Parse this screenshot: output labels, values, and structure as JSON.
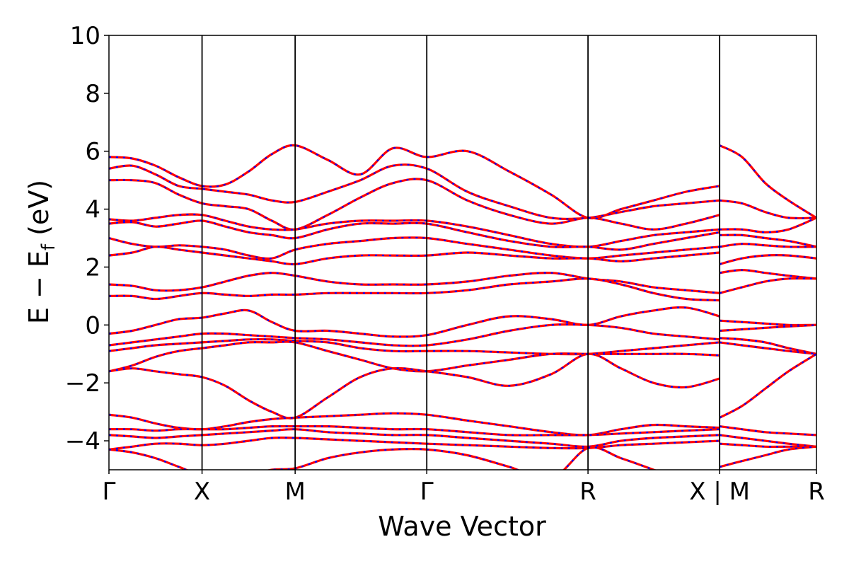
{
  "chart_data": {
    "type": "line",
    "title": "",
    "xlabel": "Wave Vector",
    "ylabel": "E − E_f (eV)",
    "ylabel_parts": {
      "main": "E − E",
      "sub": "f",
      "unit": " (eV)"
    },
    "ylim": [
      -5,
      10
    ],
    "yticks": [
      10,
      8,
      6,
      4,
      2,
      0,
      -2,
      -4
    ],
    "ytick_labels": [
      "10",
      "8",
      "6",
      "4",
      "2",
      "0",
      "−2",
      "−4"
    ],
    "xlim": [
      0,
      7.6
    ],
    "kpoints": [
      {
        "label": "Γ",
        "x": 0
      },
      {
        "label": "X",
        "x": 1
      },
      {
        "label": "M",
        "x": 2
      },
      {
        "label": "Γ",
        "x": 3.414
      },
      {
        "label": "R",
        "x": 5.146
      },
      {
        "label": "X | M",
        "x": 6.56
      },
      {
        "label": "R",
        "x": 7.6
      }
    ],
    "grid": false,
    "line_colors": {
      "primary": "#ff0000",
      "secondary": "#0000ff"
    },
    "series": [
      {
        "x": [
          0,
          0.25,
          0.5,
          0.75,
          1,
          1.25,
          1.5,
          1.75,
          2,
          2.35,
          2.7,
          3.05,
          3.414,
          3.85,
          4.3,
          4.75,
          5.146,
          5.5,
          5.85,
          6.2,
          6.56
        ],
        "values": [
          5.8,
          5.75,
          5.5,
          5.1,
          4.8,
          4.85,
          5.3,
          5.9,
          6.2,
          5.7,
          5.2,
          6.1,
          5.8,
          6.0,
          5.3,
          4.5,
          3.7,
          4.0,
          4.3,
          4.6,
          4.8
        ]
      },
      {
        "x": [
          0,
          0.25,
          0.5,
          0.75,
          1,
          1.25,
          1.5,
          1.75,
          2,
          2.35,
          2.7,
          3.05,
          3.414,
          3.85,
          4.3,
          4.75,
          5.146,
          5.5,
          5.85,
          6.2,
          6.56
        ],
        "values": [
          5.4,
          5.5,
          5.2,
          4.8,
          4.7,
          4.6,
          4.5,
          4.3,
          4.25,
          4.6,
          5.0,
          5.5,
          5.4,
          4.6,
          4.1,
          3.7,
          3.7,
          3.9,
          4.1,
          4.2,
          4.3
        ]
      },
      {
        "x": [
          0,
          0.25,
          0.5,
          0.75,
          1,
          1.25,
          1.5,
          1.75,
          2,
          2.35,
          2.7,
          3.05,
          3.414,
          3.85,
          4.3,
          4.75,
          5.146,
          5.5,
          5.85,
          6.2,
          6.56
        ],
        "values": [
          5.0,
          5.0,
          4.9,
          4.5,
          4.2,
          4.1,
          4.0,
          3.6,
          3.3,
          3.8,
          4.4,
          4.9,
          5.0,
          4.3,
          3.8,
          3.5,
          3.7,
          3.5,
          3.3,
          3.5,
          3.8
        ]
      },
      {
        "x": [
          0,
          0.25,
          0.5,
          0.75,
          1,
          1.25,
          1.5,
          1.75,
          2,
          2.35,
          2.7,
          3.05,
          3.414,
          3.85,
          4.3,
          4.75,
          5.146,
          5.5,
          5.85,
          6.2,
          6.56
        ],
        "values": [
          3.65,
          3.6,
          3.7,
          3.8,
          3.8,
          3.6,
          3.4,
          3.3,
          3.3,
          3.5,
          3.6,
          3.6,
          3.6,
          3.4,
          3.1,
          2.8,
          2.7,
          2.9,
          3.1,
          3.2,
          3.3
        ]
      },
      {
        "x": [
          0,
          0.25,
          0.5,
          0.75,
          1,
          1.25,
          1.5,
          1.75,
          2,
          2.35,
          2.7,
          3.05,
          3.414,
          3.85,
          4.3,
          4.75,
          5.146,
          5.5,
          5.85,
          6.2,
          6.56
        ],
        "values": [
          3.5,
          3.55,
          3.4,
          3.5,
          3.6,
          3.4,
          3.2,
          3.1,
          3.0,
          3.3,
          3.5,
          3.5,
          3.5,
          3.2,
          2.9,
          2.7,
          2.7,
          2.6,
          2.8,
          3.0,
          3.2
        ]
      },
      {
        "x": [
          0,
          0.25,
          0.5,
          0.75,
          1,
          1.25,
          1.5,
          1.75,
          2,
          2.35,
          2.7,
          3.05,
          3.414,
          3.85,
          4.3,
          4.75,
          5.146,
          5.5,
          5.85,
          6.2,
          6.56
        ],
        "values": [
          3.0,
          2.8,
          2.7,
          2.75,
          2.7,
          2.6,
          2.4,
          2.3,
          2.6,
          2.8,
          2.9,
          3.0,
          3.0,
          2.8,
          2.6,
          2.4,
          2.3,
          2.4,
          2.5,
          2.6,
          2.7
        ]
      },
      {
        "x": [
          0,
          0.25,
          0.5,
          0.75,
          1,
          1.25,
          1.5,
          1.75,
          2,
          2.35,
          2.7,
          3.05,
          3.414,
          3.85,
          4.3,
          4.75,
          5.146,
          5.5,
          5.85,
          6.2,
          6.56
        ],
        "values": [
          2.4,
          2.5,
          2.7,
          2.6,
          2.5,
          2.4,
          2.3,
          2.2,
          2.1,
          2.3,
          2.4,
          2.4,
          2.4,
          2.5,
          2.4,
          2.3,
          2.3,
          2.2,
          2.3,
          2.4,
          2.5
        ]
      },
      {
        "x": [
          0,
          0.25,
          0.5,
          0.75,
          1,
          1.25,
          1.5,
          1.75,
          2,
          2.35,
          2.7,
          3.05,
          3.414,
          3.85,
          4.3,
          4.75,
          5.146,
          5.5,
          5.85,
          6.2,
          6.56
        ],
        "values": [
          1.4,
          1.35,
          1.2,
          1.2,
          1.3,
          1.5,
          1.7,
          1.8,
          1.7,
          1.5,
          1.4,
          1.4,
          1.4,
          1.5,
          1.7,
          1.8,
          1.6,
          1.5,
          1.3,
          1.2,
          1.1
        ]
      },
      {
        "x": [
          0,
          0.25,
          0.5,
          0.75,
          1,
          1.25,
          1.5,
          1.75,
          2,
          2.35,
          2.7,
          3.05,
          3.414,
          3.85,
          4.3,
          4.75,
          5.146,
          5.5,
          5.85,
          6.2,
          6.56
        ],
        "values": [
          1.0,
          1.0,
          0.9,
          1.0,
          1.1,
          1.05,
          1.0,
          1.05,
          1.05,
          1.1,
          1.1,
          1.1,
          1.1,
          1.2,
          1.4,
          1.5,
          1.6,
          1.4,
          1.1,
          0.9,
          0.85
        ]
      },
      {
        "x": [
          0,
          0.25,
          0.5,
          0.75,
          1,
          1.25,
          1.5,
          1.75,
          2,
          2.35,
          2.7,
          3.05,
          3.414,
          3.85,
          4.3,
          4.75,
          5.146,
          5.5,
          5.85,
          6.2,
          6.56
        ],
        "values": [
          -0.3,
          -0.2,
          0.0,
          0.2,
          0.25,
          0.4,
          0.5,
          0.1,
          -0.2,
          -0.2,
          -0.3,
          -0.4,
          -0.35,
          0.0,
          0.3,
          0.2,
          0.0,
          0.3,
          0.5,
          0.6,
          0.3
        ]
      },
      {
        "x": [
          0,
          0.25,
          0.5,
          0.75,
          1,
          1.25,
          1.5,
          1.75,
          2,
          2.35,
          2.7,
          3.05,
          3.414,
          3.85,
          4.3,
          4.75,
          5.146,
          5.5,
          5.85,
          6.2,
          6.56
        ],
        "values": [
          -0.7,
          -0.6,
          -0.5,
          -0.4,
          -0.3,
          -0.3,
          -0.35,
          -0.4,
          -0.45,
          -0.5,
          -0.6,
          -0.7,
          -0.7,
          -0.5,
          -0.2,
          0.0,
          0.0,
          -0.1,
          -0.3,
          -0.4,
          -0.5
        ]
      },
      {
        "x": [
          0,
          0.25,
          0.5,
          0.75,
          1,
          1.25,
          1.5,
          1.75,
          2,
          2.35,
          2.7,
          3.05,
          3.414,
          3.85,
          4.3,
          4.75,
          5.146,
          5.5,
          5.85,
          6.2,
          6.56
        ],
        "values": [
          -0.9,
          -0.8,
          -0.7,
          -0.65,
          -0.6,
          -0.55,
          -0.5,
          -0.5,
          -0.55,
          -0.6,
          -0.8,
          -0.9,
          -0.9,
          -0.9,
          -0.95,
          -1.0,
          -1.0,
          -0.9,
          -0.8,
          -0.7,
          -0.6
        ]
      },
      {
        "x": [
          0,
          0.25,
          0.5,
          0.75,
          1,
          1.25,
          1.5,
          1.75,
          2,
          2.35,
          2.7,
          3.05,
          3.414,
          3.85,
          4.3,
          4.75,
          5.146,
          5.5,
          5.85,
          6.2,
          6.56
        ],
        "values": [
          -1.6,
          -1.4,
          -1.1,
          -0.9,
          -0.8,
          -0.7,
          -0.6,
          -0.6,
          -0.6,
          -0.9,
          -1.2,
          -1.5,
          -1.6,
          -1.4,
          -1.2,
          -1.0,
          -1.0,
          -1.0,
          -1.0,
          -1.0,
          -1.05
        ]
      },
      {
        "x": [
          0,
          0.25,
          0.5,
          0.75,
          1,
          1.25,
          1.5,
          1.75,
          2,
          2.35,
          2.7,
          3.05,
          3.414,
          3.85,
          4.3,
          4.75,
          5.146,
          5.5,
          5.85,
          6.2,
          6.56
        ],
        "values": [
          -1.6,
          -1.5,
          -1.6,
          -1.7,
          -1.8,
          -2.1,
          -2.6,
          -3.0,
          -3.2,
          -2.5,
          -1.8,
          -1.5,
          -1.6,
          -1.8,
          -2.1,
          -1.7,
          -1.0,
          -1.5,
          -2.0,
          -2.15,
          -1.85
        ]
      },
      {
        "x": [
          0,
          0.25,
          0.5,
          0.75,
          1,
          1.25,
          1.5,
          1.75,
          2,
          2.35,
          2.7,
          3.05,
          3.414,
          3.85,
          4.3,
          4.75,
          5.146,
          5.5,
          5.85,
          6.2,
          6.56
        ],
        "values": [
          -3.1,
          -3.2,
          -3.4,
          -3.55,
          -3.6,
          -3.5,
          -3.35,
          -3.25,
          -3.2,
          -3.15,
          -3.1,
          -3.05,
          -3.1,
          -3.3,
          -3.5,
          -3.7,
          -3.8,
          -3.6,
          -3.45,
          -3.5,
          -3.55
        ]
      },
      {
        "x": [
          0,
          0.25,
          0.5,
          0.75,
          1,
          1.25,
          1.5,
          1.75,
          2,
          2.35,
          2.7,
          3.05,
          3.414,
          3.85,
          4.3,
          4.75,
          5.146,
          5.5,
          5.85,
          6.2,
          6.56
        ],
        "values": [
          -3.6,
          -3.6,
          -3.65,
          -3.6,
          -3.6,
          -3.6,
          -3.55,
          -3.5,
          -3.5,
          -3.5,
          -3.55,
          -3.6,
          -3.6,
          -3.7,
          -3.8,
          -3.8,
          -3.8,
          -3.75,
          -3.7,
          -3.65,
          -3.6
        ]
      },
      {
        "x": [
          0,
          0.25,
          0.5,
          0.75,
          1,
          1.25,
          1.5,
          1.75,
          2,
          2.35,
          2.7,
          3.05,
          3.414,
          3.85,
          4.3,
          4.75,
          5.146,
          5.5,
          5.85,
          6.2,
          6.56
        ],
        "values": [
          -3.8,
          -3.85,
          -3.9,
          -3.85,
          -3.8,
          -3.75,
          -3.7,
          -3.65,
          -3.6,
          -3.7,
          -3.75,
          -3.8,
          -3.8,
          -3.9,
          -4.0,
          -4.1,
          -4.2,
          -4.0,
          -3.9,
          -3.85,
          -3.8
        ]
      },
      {
        "x": [
          0,
          0.25,
          0.5,
          0.75,
          1,
          1.25,
          1.5,
          1.75,
          2,
          2.35,
          2.7,
          3.05,
          3.414,
          3.85,
          4.3,
          4.75,
          5.146,
          5.5,
          5.85,
          6.2,
          6.56
        ],
        "values": [
          -4.3,
          -4.2,
          -4.1,
          -4.1,
          -4.15,
          -4.1,
          -4.0,
          -3.9,
          -3.9,
          -3.95,
          -4.0,
          -4.05,
          -4.1,
          -4.15,
          -4.2,
          -4.25,
          -4.25,
          -4.15,
          -4.1,
          -4.05,
          -4.0
        ]
      },
      {
        "x": [
          0,
          0.25,
          0.5,
          0.75,
          1,
          1.25,
          1.5,
          1.75,
          2,
          2.35,
          2.7,
          3.05,
          3.414,
          3.85,
          4.3,
          4.75,
          5.146,
          5.5,
          5.85,
          6.2,
          6.56
        ],
        "values": [
          -4.3,
          -4.4,
          -4.6,
          -4.9,
          -5.2,
          -5.3,
          -5.2,
          -5.0,
          -4.95,
          -4.6,
          -4.4,
          -4.3,
          -4.3,
          -4.5,
          -4.9,
          -5.3,
          -4.25,
          -4.6,
          -5.0,
          -5.4,
          -5.5
        ]
      },
      {
        "x": [
          6.56,
          6.8,
          7.05,
          7.3,
          7.6
        ],
        "values": [
          6.2,
          5.8,
          4.9,
          4.3,
          3.7
        ]
      },
      {
        "x": [
          6.56,
          6.8,
          7.05,
          7.3,
          7.6
        ],
        "values": [
          4.3,
          4.2,
          3.9,
          3.7,
          3.7
        ]
      },
      {
        "x": [
          6.56,
          6.8,
          7.05,
          7.3,
          7.6
        ],
        "values": [
          3.3,
          3.3,
          3.2,
          3.3,
          3.7
        ]
      },
      {
        "x": [
          6.56,
          6.8,
          7.05,
          7.3,
          7.6
        ],
        "values": [
          3.1,
          3.1,
          3.0,
          2.9,
          2.7
        ]
      },
      {
        "x": [
          6.56,
          6.8,
          7.05,
          7.3,
          7.6
        ],
        "values": [
          2.7,
          2.8,
          2.75,
          2.7,
          2.7
        ]
      },
      {
        "x": [
          6.56,
          6.8,
          7.05,
          7.3,
          7.6
        ],
        "values": [
          2.1,
          2.3,
          2.4,
          2.4,
          2.3
        ]
      },
      {
        "x": [
          6.56,
          6.8,
          7.05,
          7.3,
          7.6
        ],
        "values": [
          1.8,
          1.9,
          1.8,
          1.7,
          1.6
        ]
      },
      {
        "x": [
          6.56,
          6.8,
          7.05,
          7.3,
          7.6
        ],
        "values": [
          1.1,
          1.3,
          1.5,
          1.6,
          1.6
        ]
      },
      {
        "x": [
          6.56,
          6.8,
          7.05,
          7.3,
          7.6
        ],
        "values": [
          0.15,
          0.1,
          0.05,
          0.0,
          0.0
        ]
      },
      {
        "x": [
          6.56,
          6.8,
          7.05,
          7.3,
          7.6
        ],
        "values": [
          -0.2,
          -0.15,
          -0.1,
          -0.05,
          0.0
        ]
      },
      {
        "x": [
          6.56,
          6.8,
          7.05,
          7.3,
          7.6
        ],
        "values": [
          -0.45,
          -0.5,
          -0.6,
          -0.8,
          -1.0
        ]
      },
      {
        "x": [
          6.56,
          6.8,
          7.05,
          7.3,
          7.6
        ],
        "values": [
          -0.6,
          -0.7,
          -0.8,
          -0.9,
          -1.0
        ]
      },
      {
        "x": [
          6.56,
          6.8,
          7.05,
          7.3,
          7.6
        ],
        "values": [
          -3.2,
          -2.8,
          -2.2,
          -1.6,
          -1.0
        ]
      },
      {
        "x": [
          6.56,
          6.8,
          7.05,
          7.3,
          7.6
        ],
        "values": [
          -3.5,
          -3.6,
          -3.7,
          -3.75,
          -3.8
        ]
      },
      {
        "x": [
          6.56,
          6.8,
          7.05,
          7.3,
          7.6
        ],
        "values": [
          -3.8,
          -3.9,
          -4.0,
          -4.1,
          -4.2
        ]
      },
      {
        "x": [
          6.56,
          6.8,
          7.05,
          7.3,
          7.6
        ],
        "values": [
          -4.1,
          -4.15,
          -4.2,
          -4.2,
          -4.2
        ]
      },
      {
        "x": [
          6.56,
          6.8,
          7.05,
          7.3,
          7.6
        ],
        "values": [
          -4.9,
          -4.7,
          -4.5,
          -4.3,
          -4.2
        ]
      }
    ]
  }
}
